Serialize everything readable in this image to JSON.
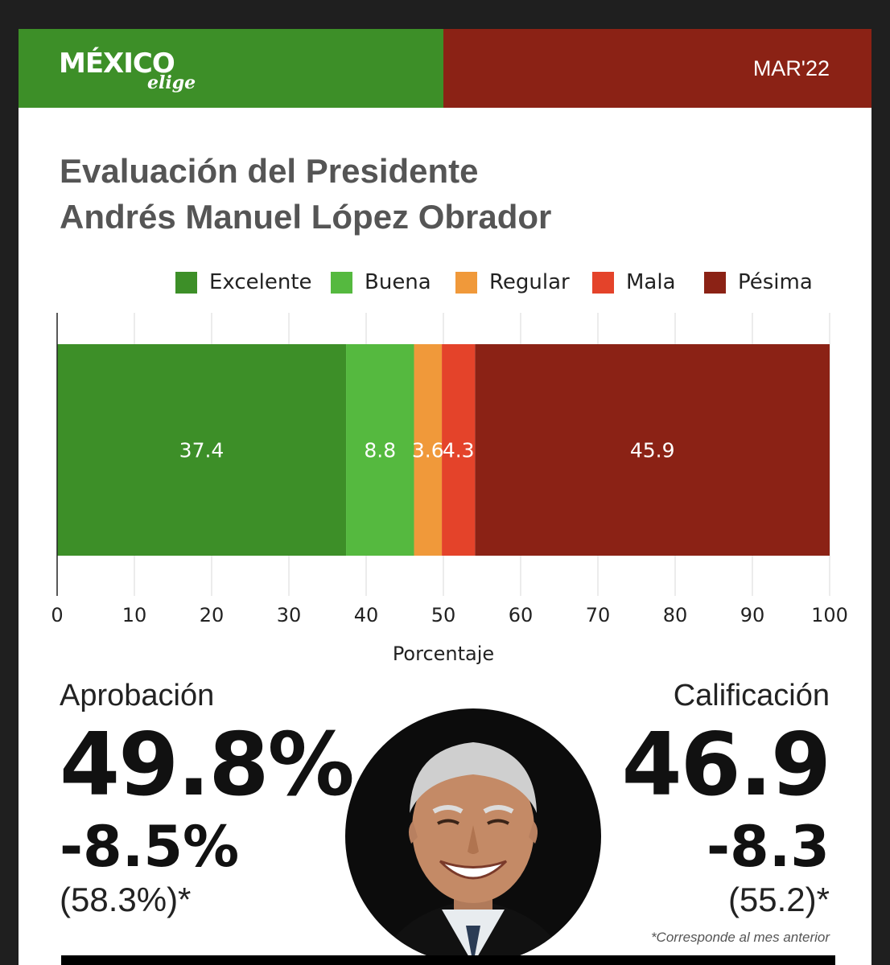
{
  "header": {
    "logo_main": "MÉXICO",
    "logo_sub": "elige",
    "date": "MAR'22",
    "colors": {
      "green": "#3d8f28",
      "red": "#8b2215"
    }
  },
  "title_line1": "Evaluación del Presidente",
  "title_line2": "Andrés Manuel López Obrador",
  "legend": [
    {
      "label": "Excelente",
      "color": "#3d8f28"
    },
    {
      "label": "Buena",
      "color": "#55b93f"
    },
    {
      "label": "Regular",
      "color": "#f0993a"
    },
    {
      "label": "Mala",
      "color": "#e4432a"
    },
    {
      "label": "Pésima",
      "color": "#8b2215"
    }
  ],
  "chart_data": {
    "type": "bar",
    "orientation": "horizontal-stacked",
    "series": [
      {
        "name": "Excelente",
        "value": 37.4,
        "label": "37.4",
        "color": "#3d8f28"
      },
      {
        "name": "Buena",
        "value": 8.8,
        "label": "8.8",
        "color": "#55b93f"
      },
      {
        "name": "Regular",
        "value": 3.6,
        "label": "3.6",
        "color": "#f0993a"
      },
      {
        "name": "Mala",
        "value": 4.3,
        "label": "4.3",
        "color": "#e4432a"
      },
      {
        "name": "Pésima",
        "value": 45.9,
        "label": "45.9",
        "color": "#8b2215"
      }
    ],
    "xlabel": "Porcentaje",
    "xlim": [
      0,
      100
    ],
    "xticks": [
      "0",
      "10",
      "20",
      "30",
      "40",
      "50",
      "60",
      "70",
      "80",
      "90",
      "100"
    ],
    "grid": true,
    "legend_position": "top"
  },
  "approval": {
    "label": "Aprobación",
    "value": "49.8%",
    "delta": "-8.5%",
    "previous": "(58.3%)*"
  },
  "rating": {
    "label": "Calificación",
    "value": "46.9",
    "delta": "-8.3",
    "previous": "(55.2)*"
  },
  "footnote": "*Corresponde al mes anterior"
}
